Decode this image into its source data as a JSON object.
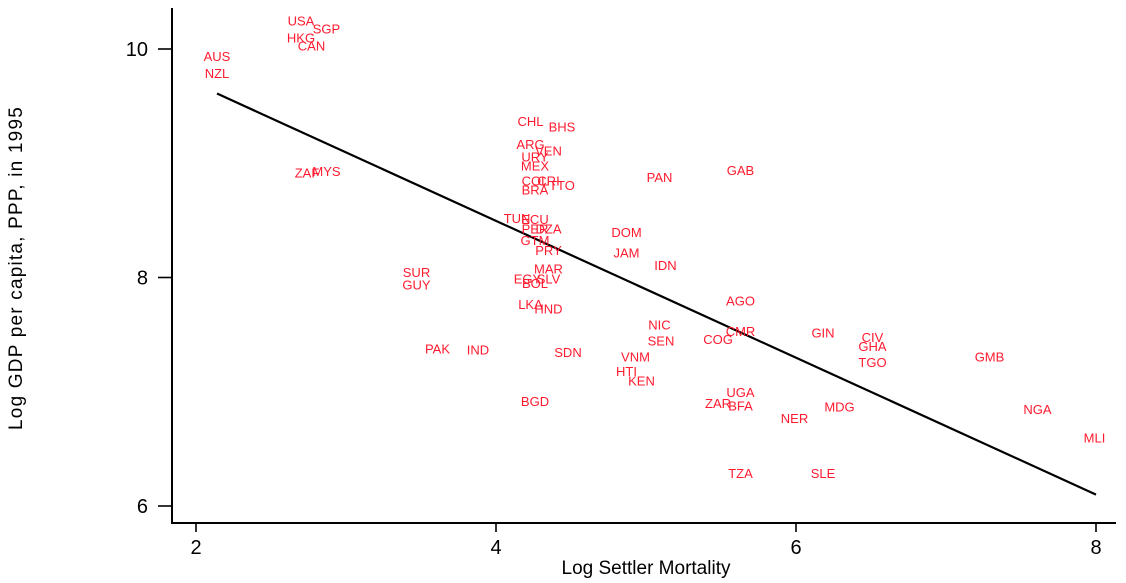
{
  "chart_data": {
    "type": "scatter",
    "title": "",
    "xlabel": "Log Settler Mortality",
    "ylabel": "Log GDP per capita, PPP, in 1995",
    "xlim": [
      1.83,
      8.2
    ],
    "ylim": [
      5.85,
      10.38
    ],
    "xticks": [
      2,
      4,
      6,
      8
    ],
    "yticks": [
      6,
      8,
      10
    ],
    "grid": false,
    "legend": "none",
    "label_color": "#ff1a2e",
    "line_color": "#000000",
    "fit_line": {
      "x": [
        2.14,
        8.0
      ],
      "y": [
        9.61,
        6.1
      ]
    },
    "points": [
      {
        "label": "AUS",
        "x": 2.14,
        "y": 9.94
      },
      {
        "label": "NZL",
        "x": 2.14,
        "y": 9.79
      },
      {
        "label": "USA",
        "x": 2.7,
        "y": 10.25
      },
      {
        "label": "SGP",
        "x": 2.87,
        "y": 10.18
      },
      {
        "label": "HKG",
        "x": 2.7,
        "y": 10.1
      },
      {
        "label": "CAN",
        "x": 2.77,
        "y": 10.03
      },
      {
        "label": "ZAF",
        "x": 2.74,
        "y": 8.92
      },
      {
        "label": "MYS",
        "x": 2.87,
        "y": 8.93
      },
      {
        "label": "CHL",
        "x": 4.23,
        "y": 9.37
      },
      {
        "label": "BHS",
        "x": 4.44,
        "y": 9.32
      },
      {
        "label": "ARG",
        "x": 4.23,
        "y": 9.17
      },
      {
        "label": "VEN",
        "x": 4.35,
        "y": 9.11
      },
      {
        "label": "URY",
        "x": 4.26,
        "y": 9.06
      },
      {
        "label": "MEX",
        "x": 4.26,
        "y": 8.98
      },
      {
        "label": "COL",
        "x": 4.26,
        "y": 8.85
      },
      {
        "label": "CRI",
        "x": 4.35,
        "y": 8.85
      },
      {
        "label": "TTO",
        "x": 4.44,
        "y": 8.81
      },
      {
        "label": "BRA",
        "x": 4.26,
        "y": 8.77
      },
      {
        "label": "PAN",
        "x": 5.09,
        "y": 8.88
      },
      {
        "label": "GAB",
        "x": 5.63,
        "y": 8.94
      },
      {
        "label": "TUN",
        "x": 4.14,
        "y": 8.52
      },
      {
        "label": "ECU",
        "x": 4.26,
        "y": 8.51
      },
      {
        "label": "PER",
        "x": 4.26,
        "y": 8.43
      },
      {
        "label": "DZA",
        "x": 4.35,
        "y": 8.43
      },
      {
        "label": "GTM",
        "x": 4.26,
        "y": 8.33
      },
      {
        "label": "PRY",
        "x": 4.35,
        "y": 8.24
      },
      {
        "label": "DOM",
        "x": 4.87,
        "y": 8.4
      },
      {
        "label": "JAM",
        "x": 4.87,
        "y": 8.22
      },
      {
        "label": "IDN",
        "x": 5.13,
        "y": 8.11
      },
      {
        "label": "SUR",
        "x": 3.47,
        "y": 8.05
      },
      {
        "label": "GUY",
        "x": 3.47,
        "y": 7.94
      },
      {
        "label": "MAR",
        "x": 4.35,
        "y": 8.08
      },
      {
        "label": "EGY",
        "x": 4.21,
        "y": 7.99
      },
      {
        "label": "SLV",
        "x": 4.35,
        "y": 7.99
      },
      {
        "label": "BOL",
        "x": 4.26,
        "y": 7.95
      },
      {
        "label": "LKA",
        "x": 4.23,
        "y": 7.77
      },
      {
        "label": "HND",
        "x": 4.35,
        "y": 7.73
      },
      {
        "label": "AGO",
        "x": 5.63,
        "y": 7.8
      },
      {
        "label": "PAK",
        "x": 3.61,
        "y": 7.38
      },
      {
        "label": "IND",
        "x": 3.88,
        "y": 7.37
      },
      {
        "label": "SDN",
        "x": 4.48,
        "y": 7.35
      },
      {
        "label": "NIC",
        "x": 5.09,
        "y": 7.59
      },
      {
        "label": "SEN",
        "x": 5.1,
        "y": 7.45
      },
      {
        "label": "COG",
        "x": 5.48,
        "y": 7.46
      },
      {
        "label": "CMR",
        "x": 5.63,
        "y": 7.53
      },
      {
        "label": "GIN",
        "x": 6.18,
        "y": 7.52
      },
      {
        "label": "CIV",
        "x": 6.51,
        "y": 7.48
      },
      {
        "label": "GHA",
        "x": 6.51,
        "y": 7.4
      },
      {
        "label": "TGO",
        "x": 6.51,
        "y": 7.26
      },
      {
        "label": "GMB",
        "x": 7.29,
        "y": 7.31
      },
      {
        "label": "VNM",
        "x": 4.93,
        "y": 7.31
      },
      {
        "label": "HTI",
        "x": 4.87,
        "y": 7.18
      },
      {
        "label": "KEN",
        "x": 4.97,
        "y": 7.1
      },
      {
        "label": "UGA",
        "x": 5.63,
        "y": 7.0
      },
      {
        "label": "ZAR",
        "x": 5.48,
        "y": 6.9
      },
      {
        "label": "BFA",
        "x": 5.63,
        "y": 6.88
      },
      {
        "label": "BGD",
        "x": 4.26,
        "y": 6.92
      },
      {
        "label": "MDG",
        "x": 6.29,
        "y": 6.87
      },
      {
        "label": "NER",
        "x": 5.99,
        "y": 6.77
      },
      {
        "label": "NGA",
        "x": 7.61,
        "y": 6.85
      },
      {
        "label": "MLI",
        "x": 7.99,
        "y": 6.6
      },
      {
        "label": "TZA",
        "x": 5.63,
        "y": 6.29
      },
      {
        "label": "SLE",
        "x": 6.18,
        "y": 6.29
      }
    ]
  }
}
